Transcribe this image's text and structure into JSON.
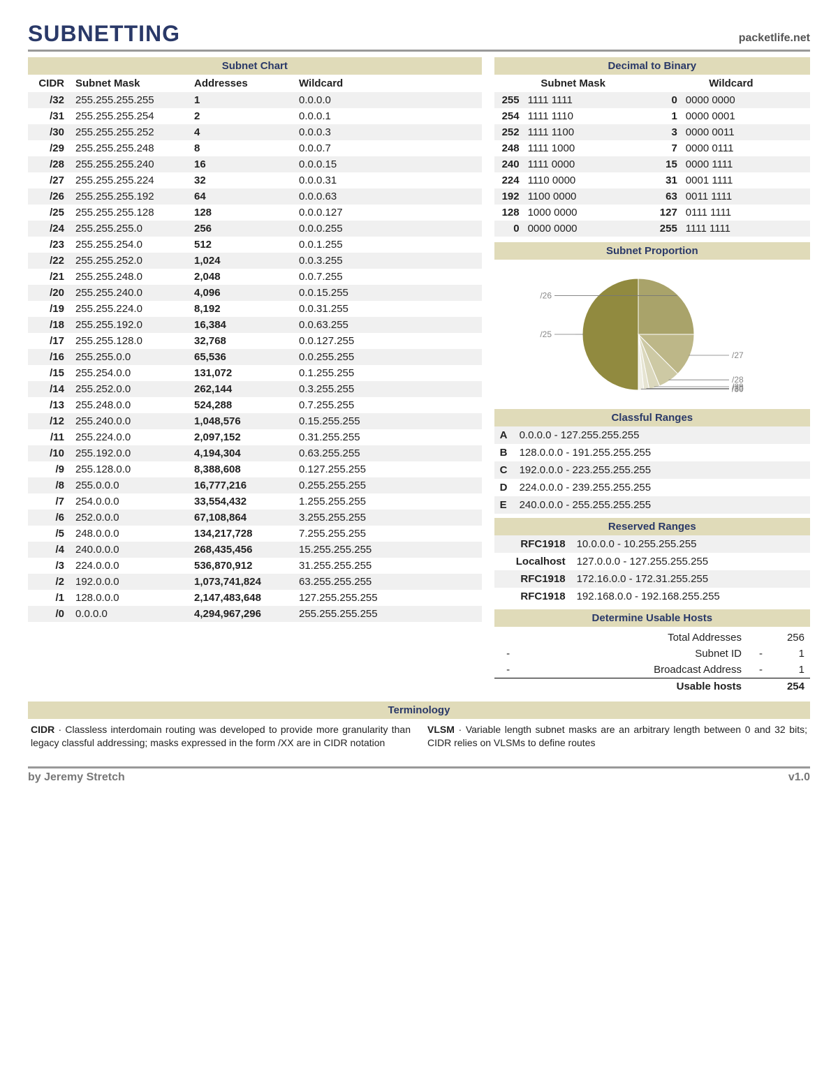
{
  "title": "SUBNETTING",
  "site": "packetlife.net",
  "subnet_chart": {
    "header": "Subnet Chart",
    "columns": {
      "cidr": "CIDR",
      "mask": "Subnet Mask",
      "addr": "Addresses",
      "wild": "Wildcard"
    },
    "rows": [
      {
        "cidr": "/32",
        "mask": "255.255.255.255",
        "addr": "1",
        "wild": "0.0.0.0"
      },
      {
        "cidr": "/31",
        "mask": "255.255.255.254",
        "addr": "2",
        "wild": "0.0.0.1"
      },
      {
        "cidr": "/30",
        "mask": "255.255.255.252",
        "addr": "4",
        "wild": "0.0.0.3"
      },
      {
        "cidr": "/29",
        "mask": "255.255.255.248",
        "addr": "8",
        "wild": "0.0.0.7"
      },
      {
        "cidr": "/28",
        "mask": "255.255.255.240",
        "addr": "16",
        "wild": "0.0.0.15"
      },
      {
        "cidr": "/27",
        "mask": "255.255.255.224",
        "addr": "32",
        "wild": "0.0.0.31"
      },
      {
        "cidr": "/26",
        "mask": "255.255.255.192",
        "addr": "64",
        "wild": "0.0.0.63"
      },
      {
        "cidr": "/25",
        "mask": "255.255.255.128",
        "addr": "128",
        "wild": "0.0.0.127"
      },
      {
        "cidr": "/24",
        "mask": "255.255.255.0",
        "addr": "256",
        "wild": "0.0.0.255"
      },
      {
        "cidr": "/23",
        "mask": "255.255.254.0",
        "addr": "512",
        "wild": "0.0.1.255"
      },
      {
        "cidr": "/22",
        "mask": "255.255.252.0",
        "addr": "1,024",
        "wild": "0.0.3.255"
      },
      {
        "cidr": "/21",
        "mask": "255.255.248.0",
        "addr": "2,048",
        "wild": "0.0.7.255"
      },
      {
        "cidr": "/20",
        "mask": "255.255.240.0",
        "addr": "4,096",
        "wild": "0.0.15.255"
      },
      {
        "cidr": "/19",
        "mask": "255.255.224.0",
        "addr": "8,192",
        "wild": "0.0.31.255"
      },
      {
        "cidr": "/18",
        "mask": "255.255.192.0",
        "addr": "16,384",
        "wild": "0.0.63.255"
      },
      {
        "cidr": "/17",
        "mask": "255.255.128.0",
        "addr": "32,768",
        "wild": "0.0.127.255"
      },
      {
        "cidr": "/16",
        "mask": "255.255.0.0",
        "addr": "65,536",
        "wild": "0.0.255.255"
      },
      {
        "cidr": "/15",
        "mask": "255.254.0.0",
        "addr": "131,072",
        "wild": "0.1.255.255"
      },
      {
        "cidr": "/14",
        "mask": "255.252.0.0",
        "addr": "262,144",
        "wild": "0.3.255.255"
      },
      {
        "cidr": "/13",
        "mask": "255.248.0.0",
        "addr": "524,288",
        "wild": "0.7.255.255"
      },
      {
        "cidr": "/12",
        "mask": "255.240.0.0",
        "addr": "1,048,576",
        "wild": "0.15.255.255"
      },
      {
        "cidr": "/11",
        "mask": "255.224.0.0",
        "addr": "2,097,152",
        "wild": "0.31.255.255"
      },
      {
        "cidr": "/10",
        "mask": "255.192.0.0",
        "addr": "4,194,304",
        "wild": "0.63.255.255"
      },
      {
        "cidr": "/9",
        "mask": "255.128.0.0",
        "addr": "8,388,608",
        "wild": "0.127.255.255"
      },
      {
        "cidr": "/8",
        "mask": "255.0.0.0",
        "addr": "16,777,216",
        "wild": "0.255.255.255"
      },
      {
        "cidr": "/7",
        "mask": "254.0.0.0",
        "addr": "33,554,432",
        "wild": "1.255.255.255"
      },
      {
        "cidr": "/6",
        "mask": "252.0.0.0",
        "addr": "67,108,864",
        "wild": "3.255.255.255"
      },
      {
        "cidr": "/5",
        "mask": "248.0.0.0",
        "addr": "134,217,728",
        "wild": "7.255.255.255"
      },
      {
        "cidr": "/4",
        "mask": "240.0.0.0",
        "addr": "268,435,456",
        "wild": "15.255.255.255"
      },
      {
        "cidr": "/3",
        "mask": "224.0.0.0",
        "addr": "536,870,912",
        "wild": "31.255.255.255"
      },
      {
        "cidr": "/2",
        "mask": "192.0.0.0",
        "addr": "1,073,741,824",
        "wild": "63.255.255.255"
      },
      {
        "cidr": "/1",
        "mask": "128.0.0.0",
        "addr": "2,147,483,648",
        "wild": "127.255.255.255"
      },
      {
        "cidr": "/0",
        "mask": "0.0.0.0",
        "addr": "4,294,967,296",
        "wild": "255.255.255.255"
      }
    ]
  },
  "binary": {
    "header": "Decimal to Binary",
    "columns": {
      "mask": "Subnet Mask",
      "wild": "Wildcard"
    },
    "rows": [
      {
        "d": "255",
        "b": "1111 1111",
        "d2": "0",
        "b2": "0000 0000"
      },
      {
        "d": "254",
        "b": "1111 1110",
        "d2": "1",
        "b2": "0000 0001"
      },
      {
        "d": "252",
        "b": "1111 1100",
        "d2": "3",
        "b2": "0000 0011"
      },
      {
        "d": "248",
        "b": "1111 1000",
        "d2": "7",
        "b2": "0000 0111"
      },
      {
        "d": "240",
        "b": "1111 0000",
        "d2": "15",
        "b2": "0000 1111"
      },
      {
        "d": "224",
        "b": "1110 0000",
        "d2": "31",
        "b2": "0001 1111"
      },
      {
        "d": "192",
        "b": "1100 0000",
        "d2": "63",
        "b2": "0011 1111"
      },
      {
        "d": "128",
        "b": "1000 0000",
        "d2": "127",
        "b2": "0111 1111"
      },
      {
        "d": "0",
        "b": "0000 0000",
        "d2": "255",
        "b2": "1111 1111"
      }
    ]
  },
  "proportion": {
    "header": "Subnet Proportion",
    "slices": [
      {
        "label": "/25",
        "value": 128,
        "color": "#918a3f"
      },
      {
        "label": "/26",
        "value": 64,
        "color": "#a9a36a"
      },
      {
        "label": "/27",
        "value": 32,
        "color": "#bdb788"
      },
      {
        "label": "/28",
        "value": 16,
        "color": "#cdc9a4"
      },
      {
        "label": "/29",
        "value": 8,
        "color": "#dbd8bd"
      },
      {
        "label": "/30",
        "value": 4,
        "color": "#e6e4d2"
      },
      {
        "label": "/30",
        "value": 4,
        "color": "#efeee3"
      }
    ],
    "stroke": "#777",
    "label_color": "#888",
    "label_fontsize": 12,
    "radius": 80
  },
  "classful": {
    "header": "Classful Ranges",
    "rows": [
      {
        "cls": "A",
        "range": "0.0.0.0 - 127.255.255.255"
      },
      {
        "cls": "B",
        "range": "128.0.0.0 - 191.255.255.255"
      },
      {
        "cls": "C",
        "range": "192.0.0.0 - 223.255.255.255"
      },
      {
        "cls": "D",
        "range": "224.0.0.0 - 239.255.255.255"
      },
      {
        "cls": "E",
        "range": "240.0.0.0 - 255.255.255.255"
      }
    ]
  },
  "reserved": {
    "header": "Reserved Ranges",
    "rows": [
      {
        "label": "RFC1918",
        "range": "10.0.0.0 - 10.255.255.255"
      },
      {
        "label": "Localhost",
        "range": "127.0.0.0 - 127.255.255.255"
      },
      {
        "label": "RFC1918",
        "range": "172.16.0.0 - 172.31.255.255"
      },
      {
        "label": "RFC1918",
        "range": "192.168.0.0 - 192.168.255.255"
      }
    ]
  },
  "hosts": {
    "header": "Determine Usable Hosts",
    "rows": [
      {
        "op": "",
        "label": "Total Addresses",
        "op2": "",
        "val": "256"
      },
      {
        "op": "-",
        "label": "Subnet ID",
        "op2": "-",
        "val": "1"
      },
      {
        "op": "-",
        "label": "Broadcast Address",
        "op2": "-",
        "val": "1"
      }
    ],
    "result": {
      "label": "Usable hosts",
      "val": "254"
    }
  },
  "terminology": {
    "header": "Terminology",
    "col1": {
      "term": "CIDR",
      "text": " · Classless interdomain routing was developed to provide more granularity than legacy classful addressing; masks expressed in the form /XX are in CIDR notation"
    },
    "col2": {
      "term": "VLSM",
      "text": " · Variable length subnet masks are an arbitrary length between 0 and 32 bits; CIDR relies on VLSMs to define routes"
    }
  },
  "footer": {
    "author": "by Jeremy Stretch",
    "version": "v1.0"
  },
  "colors": {
    "accent": "#2a3968",
    "section_bg": "#e0dbb9",
    "stripe": "#f0f0f0",
    "rule": "#999"
  }
}
